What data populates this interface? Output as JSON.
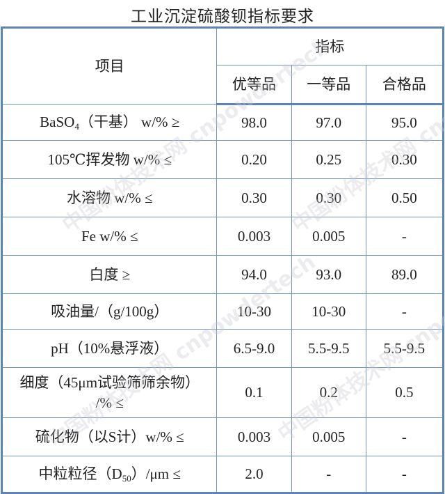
{
  "title": "工业沉淀硫酸钡指标要求",
  "header": {
    "item": "项目",
    "indicator": "指标",
    "grades": [
      "优等品",
      "一等品",
      "合格品"
    ]
  },
  "rows": [
    {
      "label_pre": "BaSO",
      "label_sub": "4",
      "label_post": "（干基） w/% ≥",
      "values": [
        "98.0",
        "97.0",
        "95.0"
      ]
    },
    {
      "label": "105℃挥发物 w/% ≤",
      "values": [
        "0.20",
        "0.25",
        "0.30"
      ]
    },
    {
      "label": "水溶物 w/% ≤",
      "values": [
        "0.30",
        "0.30",
        "0.50"
      ]
    },
    {
      "label": "Fe w/% ≤",
      "values": [
        "0.003",
        "0.005",
        "-"
      ]
    },
    {
      "label": "白度 ≥",
      "values": [
        "94.0",
        "93.0",
        "89.0"
      ]
    },
    {
      "label": "吸油量/（g/100g）",
      "values": [
        "10-30",
        "10-30",
        "-"
      ]
    },
    {
      "label": "pH（10%悬浮液）",
      "values": [
        "6.5-9.0",
        "5.5-9.5",
        "5.5-9.5"
      ]
    },
    {
      "label": "细度（45μm试验筛筛余物）",
      "label2": "/% ≤",
      "values": [
        "0.1",
        "0.2",
        "0.5"
      ]
    },
    {
      "label": "硫化物（以S计）w/% ≤",
      "values": [
        "0.003",
        "0.005",
        "-"
      ]
    },
    {
      "label_pre": "中粒粒径（D",
      "label_sub": "50",
      "label_post": "）/μm ≤",
      "values": [
        "2.0",
        "-",
        "-"
      ]
    }
  ],
  "watermark": "中国粉体技术网 cnpowdertech",
  "colors": {
    "border": "#5b84b8"
  }
}
